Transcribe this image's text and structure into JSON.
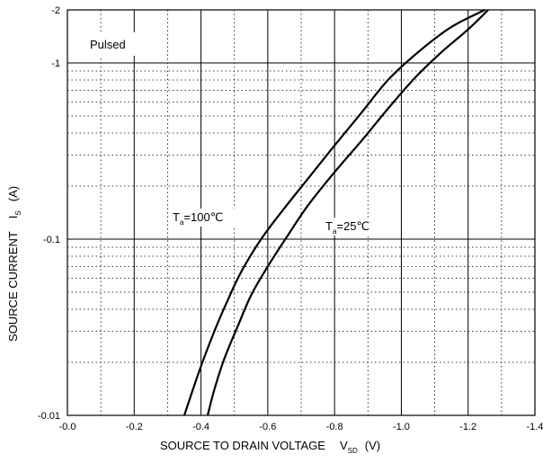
{
  "chart_data": {
    "type": "line",
    "xlabel": "SOURCE TO DRAIN VOLTAGE",
    "xlabel_symbol": "V",
    "xlabel_symbol_sub": "SD",
    "xlabel_unit": "(V)",
    "ylabel": "SOURCE CURRENT",
    "ylabel_symbol": "I",
    "ylabel_symbol_sub": "S",
    "ylabel_unit": "(A)",
    "xlim": [
      0,
      -1.4
    ],
    "ylim": [
      -0.01,
      -2
    ],
    "yscale": "log",
    "grid": true,
    "x_ticks": [
      {
        "value": 0,
        "label": "-0.0"
      },
      {
        "value": -0.2,
        "label": "-0.2"
      },
      {
        "value": -0.4,
        "label": "-0.4"
      },
      {
        "value": -0.6,
        "label": "-0.6"
      },
      {
        "value": -0.8,
        "label": "-0.8"
      },
      {
        "value": -1.0,
        "label": "-1.0"
      },
      {
        "value": -1.2,
        "label": "-1.2"
      },
      {
        "value": -1.4,
        "label": "-1.4"
      }
    ],
    "y_ticks": [
      {
        "value": -0.01,
        "label": "-0.01"
      },
      {
        "value": -0.1,
        "label": "-0.1"
      },
      {
        "value": -1,
        "label": "-1"
      },
      {
        "value": -2,
        "label": "-2"
      }
    ],
    "annotations": {
      "pulsed": "Pulsed",
      "t100": {
        "main": "T",
        "sub": "a",
        "rest": "=100℃"
      },
      "t25": {
        "main": "T",
        "sub": "a",
        "rest": "=25℃"
      }
    },
    "series": [
      {
        "x": [
          -0.35,
          -0.37,
          -0.4,
          -0.44,
          -0.48,
          -0.52,
          -0.58,
          -0.65,
          -0.72,
          -0.8,
          -0.88,
          -0.96,
          -1.05,
          -1.15,
          -1.25
        ],
        "y": [
          -0.01,
          -0.013,
          -0.019,
          -0.03,
          -0.045,
          -0.065,
          -0.1,
          -0.15,
          -0.22,
          -0.34,
          -0.52,
          -0.8,
          -1.15,
          -1.6,
          -2.0
        ]
      },
      {
        "x": [
          -0.42,
          -0.44,
          -0.47,
          -0.51,
          -0.55,
          -0.6,
          -0.66,
          -0.72,
          -0.8,
          -0.88,
          -0.96,
          -1.04,
          -1.12,
          -1.2,
          -1.26
        ],
        "y": [
          -0.01,
          -0.014,
          -0.021,
          -0.032,
          -0.048,
          -0.07,
          -0.105,
          -0.155,
          -0.24,
          -0.36,
          -0.55,
          -0.82,
          -1.15,
          -1.55,
          -2.0
        ]
      }
    ]
  }
}
